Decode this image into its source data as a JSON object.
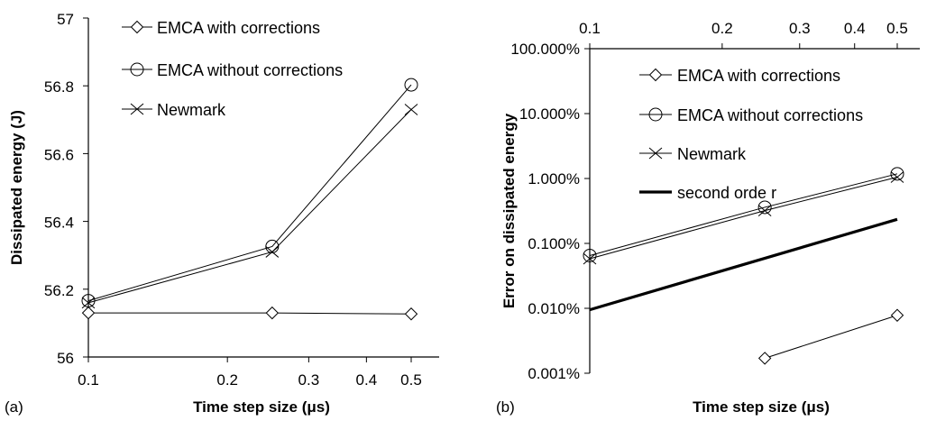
{
  "chart_data": [
    {
      "panel_label": "(a)",
      "type": "line",
      "xscale": "log",
      "xlabel": "Time step size (μs)",
      "ylabel": "Dissipated energy (J)",
      "xlim": [
        0.1,
        0.6
      ],
      "ylim": [
        56,
        57
      ],
      "x_ticks": [
        0.1,
        0.2,
        0.3,
        0.4,
        0.5
      ],
      "x_tick_labels": [
        "0.1",
        "0.2",
        "0.3",
        "0.4",
        "0.5"
      ],
      "y_ticks": [
        56,
        56.2,
        56.4,
        56.6,
        56.8,
        57
      ],
      "y_tick_labels": [
        "56",
        "56.2",
        "56.4",
        "56.6",
        "56.8",
        "57"
      ],
      "legend_position": "top-left",
      "grid": false,
      "series": [
        {
          "name": "EMCA with corrections",
          "marker": "diamond",
          "x": [
            0.1,
            0.25,
            0.5
          ],
          "y": [
            56.13,
            56.13,
            56.127
          ]
        },
        {
          "name": "EMCA without corrections",
          "marker": "circle",
          "x": [
            0.1,
            0.25,
            0.5
          ],
          "y": [
            56.166,
            56.326,
            56.803
          ]
        },
        {
          "name": "Newmark",
          "marker": "x",
          "x": [
            0.1,
            0.25,
            0.5
          ],
          "y": [
            56.16,
            56.31,
            56.73
          ]
        }
      ]
    },
    {
      "panel_label": "(b)",
      "type": "line",
      "xscale": "log",
      "yscale": "log",
      "xlabel": "Time step size (μs)",
      "ylabel": "Error on dissipated energy",
      "x_axis_position": "top",
      "xlim": [
        0.1,
        0.6
      ],
      "ylim": [
        0.001,
        100
      ],
      "x_ticks": [
        0.1,
        0.2,
        0.3,
        0.4,
        0.5
      ],
      "x_tick_labels": [
        "0.1",
        "0.2",
        "0.3",
        "0.4",
        "0.5"
      ],
      "y_ticks": [
        0.001,
        0.01,
        0.1,
        1,
        10,
        100
      ],
      "y_tick_labels": [
        "0.001%",
        "0.010%",
        "0.100%",
        "1.000%",
        "10.000%",
        "100.000%"
      ],
      "legend_position": "top-right",
      "grid": false,
      "series": [
        {
          "name": "EMCA with corrections",
          "marker": "diamond",
          "x": [
            0.25,
            0.5
          ],
          "y": [
            0.0017,
            0.0078
          ]
        },
        {
          "name": "EMCA without corrections",
          "marker": "circle",
          "x": [
            0.1,
            0.25,
            0.5
          ],
          "y": [
            0.065,
            0.36,
            1.18
          ]
        },
        {
          "name": "Newmark",
          "marker": "x",
          "x": [
            0.1,
            0.25,
            0.5
          ],
          "y": [
            0.058,
            0.32,
            1.05
          ]
        },
        {
          "name": "second orde r",
          "marker": "none",
          "thick": true,
          "x": [
            0.1,
            0.5
          ],
          "y": [
            0.0095,
            0.235
          ]
        }
      ]
    }
  ]
}
